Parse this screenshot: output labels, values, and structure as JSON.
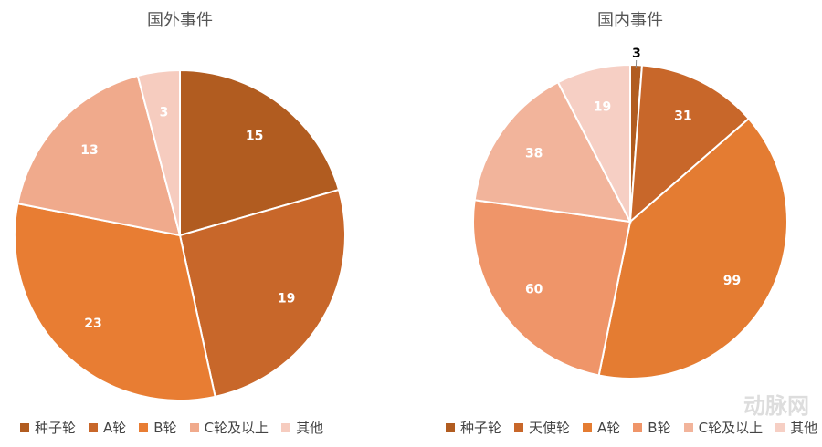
{
  "chart_data": [
    {
      "type": "pie",
      "title": "国外事件",
      "categories": [
        "种子轮",
        "A轮",
        "B轮",
        "C轮及以上",
        "其他"
      ],
      "values": [
        15,
        19,
        23,
        13,
        3
      ],
      "colors": [
        "#b15c20",
        "#c8672a",
        "#e87d33",
        "#f0aa8c",
        "#f6ccbf"
      ]
    },
    {
      "type": "pie",
      "title": "国内事件",
      "categories": [
        "种子轮",
        "天使轮",
        "A轮",
        "B轮",
        "C轮及以上",
        "其他"
      ],
      "values": [
        3,
        31,
        99,
        60,
        38,
        19
      ],
      "colors": [
        "#b15c20",
        "#c8672a",
        "#e47c32",
        "#ef9569",
        "#f2b49b",
        "#f6cfc4"
      ]
    }
  ],
  "watermark": "动脉网"
}
